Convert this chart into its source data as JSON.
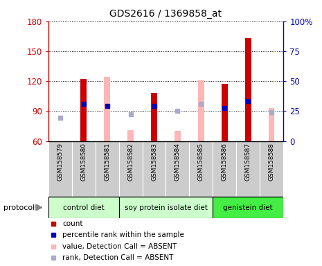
{
  "title": "GDS2616 / 1369858_at",
  "samples": [
    "GSM158579",
    "GSM158580",
    "GSM158581",
    "GSM158582",
    "GSM158583",
    "GSM158584",
    "GSM158585",
    "GSM158586",
    "GSM158587",
    "GSM158588"
  ],
  "red_bars": [
    null,
    122,
    null,
    null,
    108,
    null,
    null,
    117,
    163,
    null
  ],
  "pink_bars": [
    null,
    null,
    124,
    71,
    null,
    70,
    121,
    null,
    null,
    93
  ],
  "blue_squares_y1": [
    null,
    97,
    95,
    null,
    95,
    null,
    null,
    93,
    100,
    null
  ],
  "lavender_squares_y1": [
    83,
    null,
    null,
    87,
    null,
    90,
    97,
    null,
    null,
    89
  ],
  "ylim": [
    60,
    180
  ],
  "yticks": [
    60,
    90,
    120,
    150,
    180
  ],
  "y2lim": [
    0,
    100
  ],
  "y2ticks": [
    0,
    25,
    50,
    75,
    100
  ],
  "y2ticklabels": [
    "0",
    "25",
    "50",
    "75",
    "100%"
  ],
  "bar_width": 0.5,
  "red_color": "#cc0000",
  "pink_color": "#ffb6b6",
  "blue_color": "#0000bb",
  "lavender_color": "#aaaacc",
  "ylabel_color": "#cc0000",
  "y2label_color": "#0000bb",
  "group_defs": [
    {
      "label": "control diet",
      "start": 0,
      "end": 2,
      "color": "#ccffcc"
    },
    {
      "label": "soy protein isolate diet",
      "start": 3,
      "end": 6,
      "color": "#ccffcc"
    },
    {
      "label": "genistein diet",
      "start": 7,
      "end": 9,
      "color": "#44ee44"
    }
  ],
  "legend_colors": [
    "#cc0000",
    "#0000bb",
    "#ffb6b6",
    "#aaaacc"
  ],
  "legend_labels": [
    "count",
    "percentile rank within the sample",
    "value, Detection Call = ABSENT",
    "rank, Detection Call = ABSENT"
  ]
}
